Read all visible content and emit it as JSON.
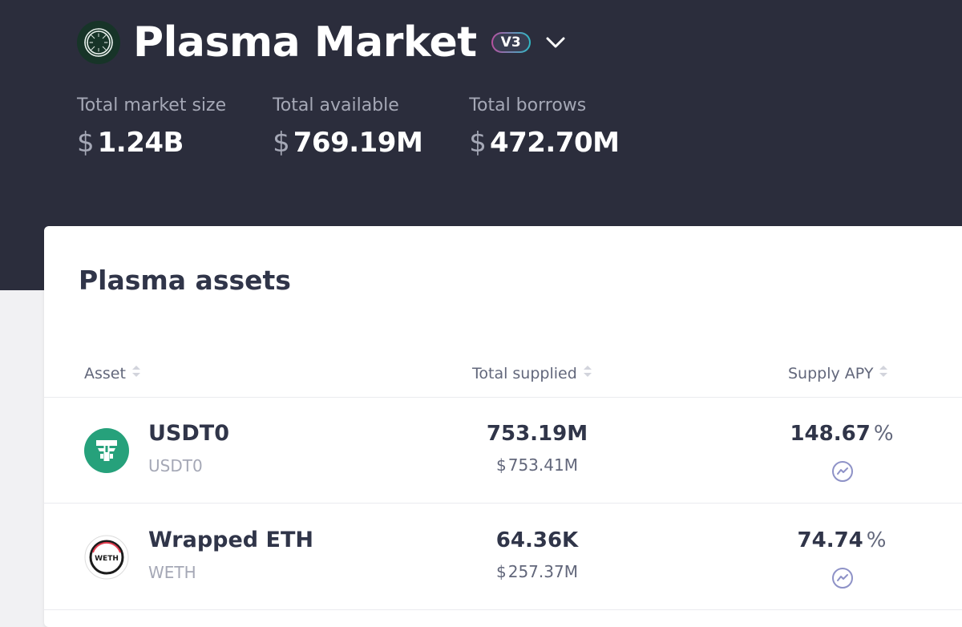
{
  "header": {
    "title": "Plasma Market",
    "version_badge": "V3",
    "logo_icon": "plasma-logo-icon",
    "dropdown_icon": "chevron-down-icon"
  },
  "stats": {
    "total_market_size": {
      "label": "Total market size",
      "currency": "$",
      "value": "1.24B"
    },
    "total_available": {
      "label": "Total available",
      "currency": "$",
      "value": "769.19M"
    },
    "total_borrows": {
      "label": "Total borrows",
      "currency": "$",
      "value": "472.70M"
    }
  },
  "assets_card": {
    "title": "Plasma assets",
    "columns": [
      {
        "label": "Asset"
      },
      {
        "label": "Total supplied"
      },
      {
        "label": "Supply APY"
      }
    ],
    "rows": [
      {
        "name": "USDT0",
        "symbol": "USDT0",
        "icon": "usdt0-token-icon",
        "total_supplied": "753.19M",
        "total_supplied_usd_currency": "$",
        "total_supplied_usd": "753.41M",
        "supply_apy": "148.67",
        "apy_unit": "%"
      },
      {
        "name": "Wrapped ETH",
        "symbol": "WETH",
        "icon": "weth-token-icon",
        "icon_text": "WETH",
        "total_supplied": "64.36K",
        "total_supplied_usd_currency": "$",
        "total_supplied_usd": "257.37M",
        "supply_apy": "74.74",
        "apy_unit": "%"
      }
    ]
  },
  "colors": {
    "header_bg": "#2b2d3c",
    "usdt0_green": "#26a17b",
    "apy_icon": "#8e92c7"
  }
}
